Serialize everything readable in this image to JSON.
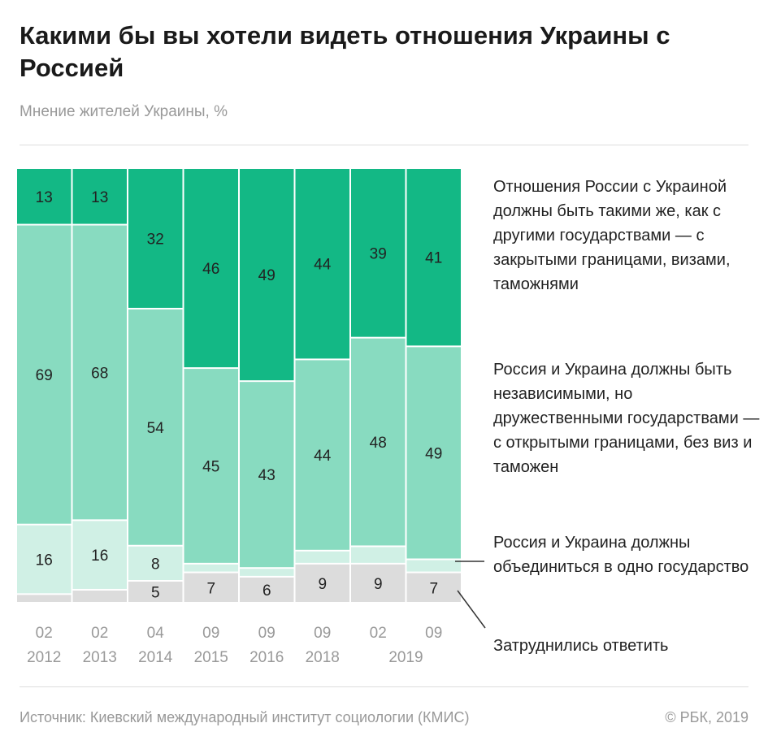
{
  "title": "Какими бы вы хотели видеть отношения Украины с Россией",
  "subtitle": "Мнение жителей Украины, %",
  "source": "Источник: Киевский международный институт социологии (КМИС)",
  "copyright": "© РБК, 2019",
  "chart_data": {
    "type": "bar",
    "stacked": true,
    "categories": [
      "02 2012",
      "02 2013",
      "04 2014",
      "09 2015",
      "09 2016",
      "09 2018",
      "02 2019",
      "09 2019"
    ],
    "tick_months": [
      "02",
      "02",
      "04",
      "09",
      "09",
      "09",
      "02",
      "09"
    ],
    "tick_years": [
      "2012",
      "2013",
      "2014",
      "2015",
      "2016",
      "2018",
      "2019"
    ],
    "ylim": [
      0,
      100
    ],
    "series": [
      {
        "name": "Затруднились ответить",
        "color": "#dcdcdc",
        "values": [
          2,
          3,
          5,
          7,
          6,
          9,
          9,
          7
        ],
        "labeled": [
          false,
          false,
          true,
          true,
          true,
          true,
          true,
          true
        ]
      },
      {
        "name": "Россия и Украина должны объединиться в одно государство",
        "color": "#d0f0e5",
        "values": [
          16,
          16,
          8,
          2,
          2,
          3,
          4,
          3
        ],
        "labeled": [
          true,
          true,
          true,
          false,
          false,
          false,
          false,
          false
        ]
      },
      {
        "name": "Россия и Украина должны быть независимыми, но дружественными государствами — с открытыми границами, без виз и таможен",
        "color": "#88dbc0",
        "values": [
          69,
          68,
          54,
          45,
          43,
          44,
          48,
          49
        ],
        "labeled": [
          true,
          true,
          true,
          true,
          true,
          true,
          true,
          true
        ]
      },
      {
        "name": "Отношения России с Украиной должны быть такими же, как с другими государствами — с закрытыми границами, визами, таможнями",
        "color": "#13b885",
        "values": [
          13,
          13,
          32,
          46,
          49,
          44,
          39,
          41
        ],
        "labeled": [
          true,
          true,
          true,
          true,
          true,
          true,
          true,
          true
        ]
      }
    ]
  }
}
